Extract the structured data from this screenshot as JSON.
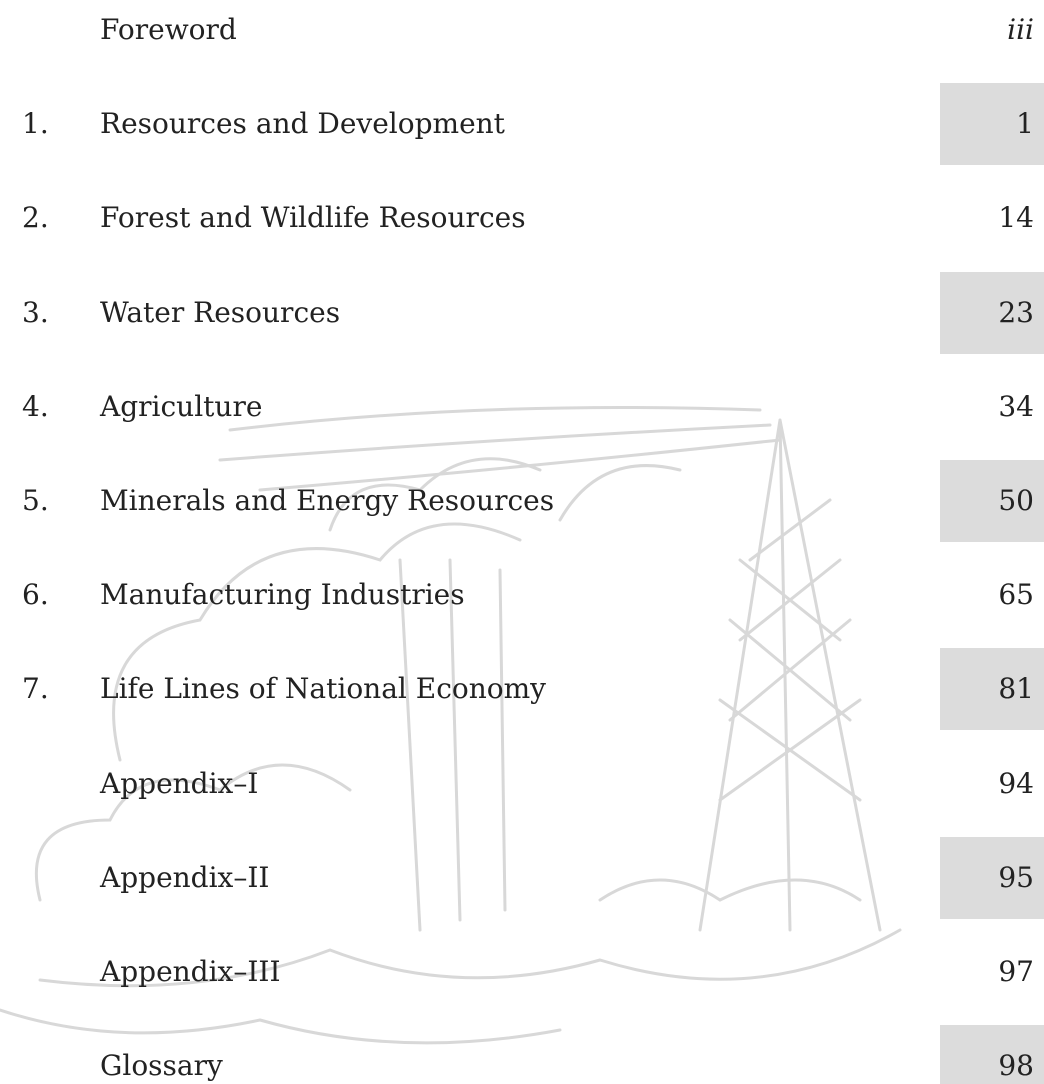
{
  "contents": {
    "entries": [
      {
        "title": "Foreword",
        "page": "iii"
      },
      {
        "number": "1.",
        "title": "Resources and Development",
        "page": 1
      },
      {
        "number": "2.",
        "title": "Forest and Wildlife Resources",
        "page": 14
      },
      {
        "number": "3.",
        "title": "Water Resources",
        "page": 23
      },
      {
        "number": "4.",
        "title": "Agriculture",
        "page": 34
      },
      {
        "number": "5.",
        "title": "Minerals and Energy Resources",
        "page": 50
      },
      {
        "number": "6.",
        "title": "Manufacturing Industries",
        "page": 65
      },
      {
        "number": "7.",
        "title": "Life Lines of National Economy",
        "page": 81
      },
      {
        "title": "Appendix–I",
        "page": 94
      },
      {
        "title": "Appendix–II",
        "page": 95
      },
      {
        "title": "Appendix–III",
        "page": 97
      },
      {
        "title": "Glossary",
        "page": 98
      }
    ]
  }
}
